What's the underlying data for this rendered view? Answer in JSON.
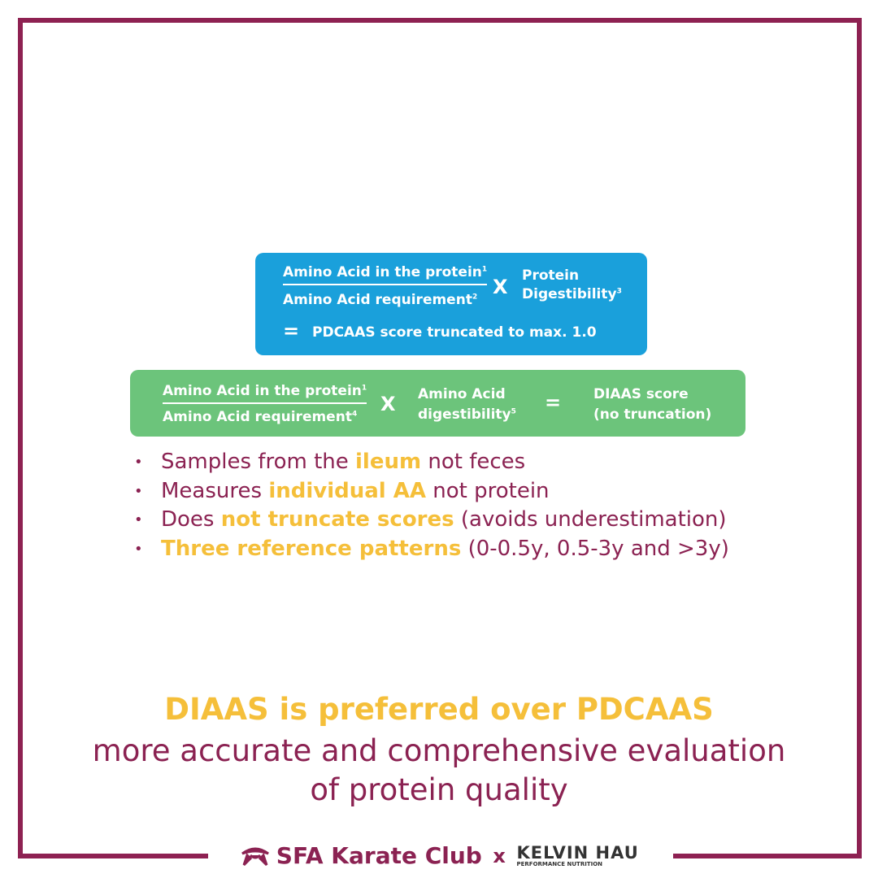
{
  "pdcaas": {
    "numerator": "Amino Acid in the protein",
    "numerator_note": "1",
    "denominator": "Amino Acid requirement",
    "denominator_note": "2",
    "operator": "X",
    "factor_lines": [
      "Protein",
      "Digestibility"
    ],
    "factor_note": "3",
    "equals": "=",
    "result": "PDCAAS score truncated to max. 1.0"
  },
  "diaas": {
    "numerator": "Amino Acid in the protein",
    "numerator_note": "1",
    "denominator": "Amino Acid requirement",
    "denominator_note": "4",
    "operator": "X",
    "factor_lines": [
      "Amino Acid",
      "digestibility"
    ],
    "factor_note": "5",
    "equals": "=",
    "result_lines": [
      "DIAAS score",
      "(no truncation)"
    ]
  },
  "bullets": [
    [
      {
        "text": "Samples from the ",
        "highlight": false
      },
      {
        "text": "ileum",
        "highlight": true
      },
      {
        "text": " not feces",
        "highlight": false
      }
    ],
    [
      {
        "text": "Measures ",
        "highlight": false
      },
      {
        "text": "individual AA",
        "highlight": true
      },
      {
        "text": " not protein",
        "highlight": false
      }
    ],
    [
      {
        "text": "Does ",
        "highlight": false
      },
      {
        "text": "not truncate scores",
        "highlight": true
      },
      {
        "text": " (avoids underestimation)",
        "highlight": false
      }
    ],
    [
      {
        "text": "Three reference patterns",
        "highlight": true
      },
      {
        "text": " (0-0.5y, 0.5-3y and >3y)",
        "highlight": false
      }
    ]
  ],
  "conclusion": {
    "headline": "DIAAS is preferred over PDCAAS",
    "lines": [
      "more accurate and comprehensive evaluation",
      "of protein quality"
    ]
  },
  "footer": {
    "club": "SFA Karate Club",
    "joiner": "x",
    "partner": "KELVIN HAU",
    "partner_tagline": "PERFORMANCE NUTRITION"
  }
}
